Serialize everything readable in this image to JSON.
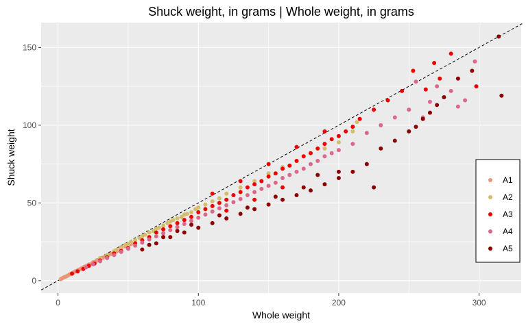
{
  "chart_data": {
    "type": "scatter",
    "title": "Shuck weight, in grams | Whole weight, in grams",
    "xlabel": "Whole weight",
    "ylabel": "Shuck weight",
    "xlim": [
      -12,
      330
    ],
    "ylim": [
      -8,
      166
    ],
    "x_ticks": [
      0,
      100,
      200,
      300
    ],
    "y_ticks": [
      0,
      50,
      100,
      150
    ],
    "x_tick_labels": [
      "0",
      "100",
      "200",
      "300"
    ],
    "y_tick_labels": [
      "0",
      "50",
      "100",
      "150"
    ],
    "grid": true,
    "reference_line": {
      "slope": 0.5,
      "intercept": 0,
      "style": "dashed"
    },
    "legend": {
      "position": "right",
      "entries": [
        "A1",
        "A2",
        "A3",
        "A4",
        "A5"
      ]
    },
    "colors": {
      "A1": "#e8967a",
      "A2": "#d4bd6c",
      "A3": "#ee0000",
      "A4": "#d9698a",
      "A5": "#8b0000"
    },
    "series": [
      {
        "name": "A1",
        "points": [
          [
            2,
            1
          ],
          [
            3,
            1.5
          ],
          [
            4,
            2
          ],
          [
            5,
            2.4
          ],
          [
            6,
            2.8
          ],
          [
            7,
            3.3
          ],
          [
            8,
            3.9
          ],
          [
            9,
            4.3
          ],
          [
            10,
            4.8
          ],
          [
            11,
            5.2
          ],
          [
            12,
            5.8
          ],
          [
            13,
            6.1
          ],
          [
            14,
            6.6
          ],
          [
            15,
            7.1
          ],
          [
            16,
            7.5
          ],
          [
            17,
            8
          ],
          [
            18,
            8.4
          ],
          [
            19,
            9
          ],
          [
            20,
            9.3
          ],
          [
            21,
            9.8
          ],
          [
            22,
            10.4
          ],
          [
            24,
            11
          ],
          [
            25,
            11.8
          ],
          [
            27,
            12.5
          ],
          [
            28,
            13.2
          ],
          [
            30,
            14
          ],
          [
            32,
            14.8
          ],
          [
            34,
            15.5
          ],
          [
            36,
            16.5
          ],
          [
            38,
            17.2
          ],
          [
            40,
            18.5
          ],
          [
            42,
            19
          ],
          [
            45,
            20.5
          ],
          [
            48,
            22
          ],
          [
            52,
            23.5
          ]
        ]
      },
      {
        "name": "A2",
        "points": [
          [
            30,
            14.5
          ],
          [
            35,
            16.5
          ],
          [
            40,
            19
          ],
          [
            42,
            20
          ],
          [
            45,
            21.5
          ],
          [
            48,
            23
          ],
          [
            50,
            23.5
          ],
          [
            52,
            25
          ],
          [
            55,
            26
          ],
          [
            58,
            27.5
          ],
          [
            60,
            28.5
          ],
          [
            62,
            29.5
          ],
          [
            65,
            31
          ],
          [
            68,
            32
          ],
          [
            70,
            33.5
          ],
          [
            72,
            34
          ],
          [
            75,
            35.5
          ],
          [
            78,
            37
          ],
          [
            80,
            38
          ],
          [
            82,
            39
          ],
          [
            85,
            40
          ],
          [
            88,
            41
          ],
          [
            90,
            42.5
          ],
          [
            92,
            43
          ],
          [
            95,
            44
          ],
          [
            98,
            46
          ],
          [
            100,
            47
          ],
          [
            105,
            49
          ],
          [
            110,
            51
          ],
          [
            115,
            53
          ],
          [
            120,
            56
          ],
          [
            130,
            60
          ],
          [
            140,
            64
          ],
          [
            150,
            69
          ],
          [
            160,
            73
          ],
          [
            170,
            77
          ],
          [
            180,
            82
          ],
          [
            190,
            85
          ],
          [
            200,
            89
          ],
          [
            210,
            96
          ],
          [
            213,
            102
          ]
        ]
      },
      {
        "name": "A3",
        "points": [
          [
            10,
            4.5
          ],
          [
            14,
            6
          ],
          [
            18,
            7.5
          ],
          [
            22,
            9.5
          ],
          [
            26,
            11
          ],
          [
            30,
            13
          ],
          [
            35,
            15
          ],
          [
            40,
            17.5
          ],
          [
            45,
            19
          ],
          [
            50,
            21
          ],
          [
            55,
            24
          ],
          [
            60,
            26
          ],
          [
            65,
            28
          ],
          [
            70,
            31
          ],
          [
            75,
            33
          ],
          [
            80,
            35
          ],
          [
            85,
            37
          ],
          [
            90,
            39
          ],
          [
            95,
            41
          ],
          [
            100,
            44
          ],
          [
            105,
            46
          ],
          [
            110,
            48
          ],
          [
            115,
            50
          ],
          [
            120,
            52
          ],
          [
            125,
            55
          ],
          [
            130,
            57
          ],
          [
            135,
            60
          ],
          [
            140,
            62
          ],
          [
            145,
            64
          ],
          [
            150,
            67
          ],
          [
            155,
            69
          ],
          [
            160,
            72
          ],
          [
            165,
            74
          ],
          [
            170,
            77
          ],
          [
            175,
            80
          ],
          [
            180,
            82
          ],
          [
            185,
            85
          ],
          [
            190,
            88
          ],
          [
            195,
            91
          ],
          [
            200,
            93
          ],
          [
            205,
            96
          ],
          [
            210,
            99
          ],
          [
            215,
            104
          ],
          [
            225,
            110
          ],
          [
            235,
            116
          ],
          [
            245,
            122
          ],
          [
            253,
            135
          ],
          [
            262,
            123
          ],
          [
            268,
            140
          ],
          [
            272,
            130
          ],
          [
            280,
            146
          ],
          [
            298,
            125
          ],
          [
            110,
            56
          ],
          [
            130,
            64
          ],
          [
            150,
            75
          ],
          [
            170,
            86
          ],
          [
            190,
            96
          ],
          [
            120,
            45
          ],
          [
            140,
            52
          ],
          [
            160,
            60
          ]
        ]
      },
      {
        "name": "A4",
        "points": [
          [
            20,
            8.5
          ],
          [
            25,
            10.5
          ],
          [
            30,
            12.5
          ],
          [
            35,
            14.5
          ],
          [
            40,
            16.5
          ],
          [
            45,
            18.5
          ],
          [
            50,
            20.5
          ],
          [
            55,
            22.5
          ],
          [
            60,
            24.5
          ],
          [
            65,
            26.5
          ],
          [
            70,
            28.5
          ],
          [
            75,
            30.5
          ],
          [
            80,
            32.5
          ],
          [
            85,
            34.5
          ],
          [
            90,
            36.5
          ],
          [
            95,
            38.5
          ],
          [
            100,
            40.5
          ],
          [
            105,
            42.5
          ],
          [
            110,
            44.5
          ],
          [
            115,
            46.5
          ],
          [
            120,
            48.5
          ],
          [
            125,
            50.5
          ],
          [
            130,
            52.5
          ],
          [
            135,
            55
          ],
          [
            140,
            57
          ],
          [
            145,
            59
          ],
          [
            150,
            61
          ],
          [
            155,
            63
          ],
          [
            160,
            66
          ],
          [
            165,
            68
          ],
          [
            170,
            70
          ],
          [
            175,
            72
          ],
          [
            180,
            75
          ],
          [
            185,
            77
          ],
          [
            190,
            80
          ],
          [
            195,
            82
          ],
          [
            200,
            84
          ],
          [
            210,
            88
          ],
          [
            220,
            95
          ],
          [
            230,
            100
          ],
          [
            240,
            105
          ],
          [
            250,
            110
          ],
          [
            255,
            128
          ],
          [
            265,
            115
          ],
          [
            270,
            125
          ],
          [
            280,
            122
          ],
          [
            290,
            116
          ],
          [
            297,
            141
          ],
          [
            285,
            112
          ],
          [
            260,
            105
          ]
        ]
      },
      {
        "name": "A5",
        "points": [
          [
            60,
            20
          ],
          [
            70,
            24
          ],
          [
            80,
            28
          ],
          [
            90,
            31
          ],
          [
            100,
            34
          ],
          [
            110,
            37
          ],
          [
            120,
            40
          ],
          [
            130,
            43
          ],
          [
            140,
            46
          ],
          [
            150,
            49
          ],
          [
            160,
            52
          ],
          [
            170,
            55
          ],
          [
            180,
            58
          ],
          [
            190,
            62
          ],
          [
            200,
            66
          ],
          [
            210,
            70
          ],
          [
            220,
            75
          ],
          [
            225,
            60
          ],
          [
            230,
            85
          ],
          [
            240,
            90
          ],
          [
            250,
            96
          ],
          [
            255,
            99
          ],
          [
            260,
            104
          ],
          [
            265,
            108
          ],
          [
            270,
            113
          ],
          [
            275,
            118
          ],
          [
            285,
            130
          ],
          [
            295,
            135
          ],
          [
            316,
            119
          ],
          [
            314,
            157
          ],
          [
            200,
            70
          ],
          [
            185,
            68
          ],
          [
            175,
            60
          ],
          [
            155,
            54
          ],
          [
            135,
            47
          ],
          [
            115,
            42
          ],
          [
            95,
            36
          ],
          [
            85,
            32
          ],
          [
            75,
            28
          ],
          [
            65,
            23
          ]
        ]
      }
    ]
  }
}
